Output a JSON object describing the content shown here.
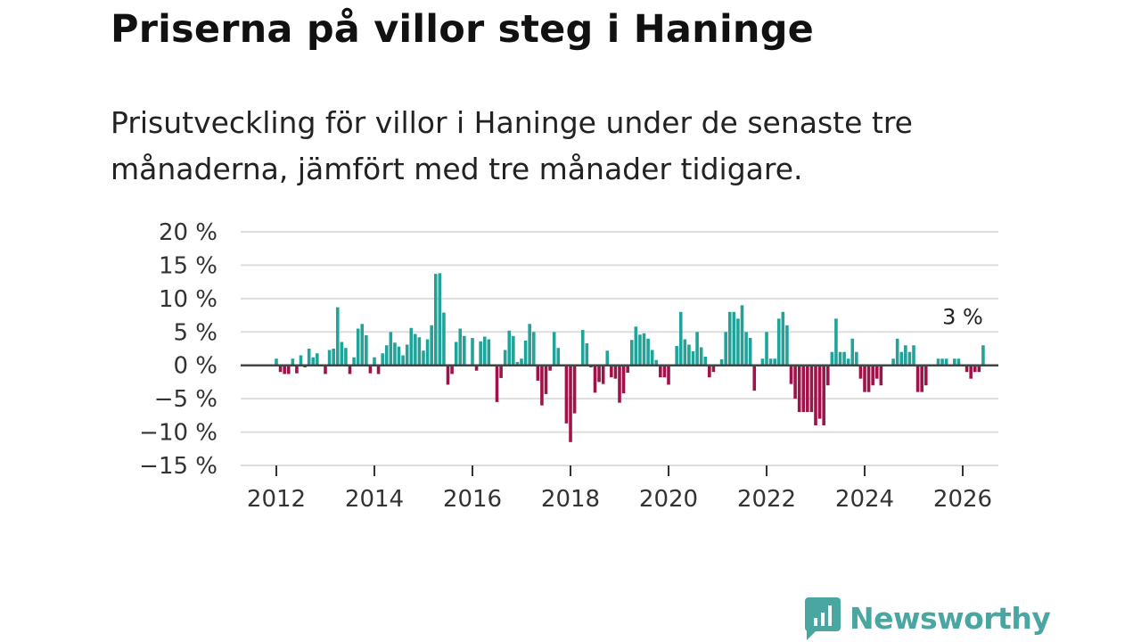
{
  "title": "Priserna på villor steg i Haninge",
  "subtitle": "Prisutveckling för villor i Haninge under de senaste tre månaderna, jämfört med tre månader tidigare.",
  "brand": {
    "name": "Newsworthy",
    "icon": "newsworthy-logo-icon"
  },
  "colors": {
    "positive": "#21a39a",
    "negative": "#a0124a",
    "grid": "#dddddd",
    "zero": "#444444",
    "brand": "#4aa6a0"
  },
  "chart_data": {
    "type": "bar",
    "title": "Priserna på villor steg i Haninge",
    "ylabel": "",
    "xlabel": "",
    "ylim": [
      -15,
      20
    ],
    "yticks": [
      20,
      15,
      10,
      5,
      0,
      -5,
      -10,
      -15
    ],
    "ytick_labels": [
      "20 %",
      "15 %",
      "10 %",
      "5 %",
      "0 %",
      "−5 %",
      "−10 %",
      "−15 %"
    ],
    "xticks": [
      2012,
      2014,
      2016,
      2018,
      2020,
      2022,
      2024,
      2026
    ],
    "xtick_labels": [
      "2012",
      "2014",
      "2016",
      "2018",
      "2020",
      "2022",
      "2024",
      "2026"
    ],
    "start": "2012-01",
    "end": "2026-01",
    "annotation": {
      "text": "3 %",
      "date": "2026-01",
      "value": 3
    },
    "values": [
      1,
      -1,
      -1.3,
      -1.3,
      1,
      -1.2,
      1.5,
      -0.3,
      2.5,
      1.2,
      1.8,
      0,
      -1.3,
      2.3,
      2.5,
      8.7,
      3.5,
      2.6,
      -1.3,
      1.2,
      5.5,
      6.2,
      4.5,
      -1.2,
      1.2,
      -1.3,
      1.8,
      3,
      5,
      3.4,
      2.8,
      1.5,
      3.1,
      5.6,
      4.7,
      4.2,
      2.2,
      3.9,
      6,
      13.7,
      13.8,
      7.9,
      -2.9,
      -1.3,
      3.5,
      5.5,
      4.4,
      0,
      4.1,
      -0.8,
      3.6,
      4.3,
      3.9,
      0,
      -5.5,
      -1.9,
      2.3,
      5.2,
      4.4,
      0.5,
      1,
      3.7,
      6.2,
      5,
      -2.3,
      -6,
      -4.3,
      -0.8,
      5,
      2.6,
      0,
      -8.7,
      -11.5,
      -7.2,
      0,
      5.3,
      3.3,
      -0.3,
      -4.1,
      -2.5,
      -2.8,
      2.2,
      -1.8,
      -2,
      -5.6,
      -4.2,
      -1.1,
      3.8,
      5.8,
      4.6,
      4.8,
      4,
      2.3,
      0.8,
      -1.8,
      -1.8,
      -2.9,
      0,
      2.9,
      8,
      3.9,
      3.1,
      2.1,
      5,
      2.7,
      1.3,
      -1.8,
      -1,
      0,
      0.9,
      5,
      8,
      8,
      7,
      9,
      5,
      4.1,
      -3.8,
      0,
      1,
      5,
      1,
      1,
      7,
      8,
      6,
      -2.8,
      -5,
      -7,
      -7,
      -7,
      -7,
      -9,
      -8,
      -9,
      -3,
      2,
      7,
      2,
      2,
      1,
      4,
      2,
      -2,
      -4,
      -4,
      -3,
      -2,
      -3,
      0,
      0,
      1,
      4,
      2,
      3,
      2,
      3,
      -4,
      -4,
      -3,
      0,
      0,
      1,
      1,
      1,
      0,
      1,
      1,
      0,
      -1,
      -2,
      -1,
      -1,
      3
    ]
  }
}
